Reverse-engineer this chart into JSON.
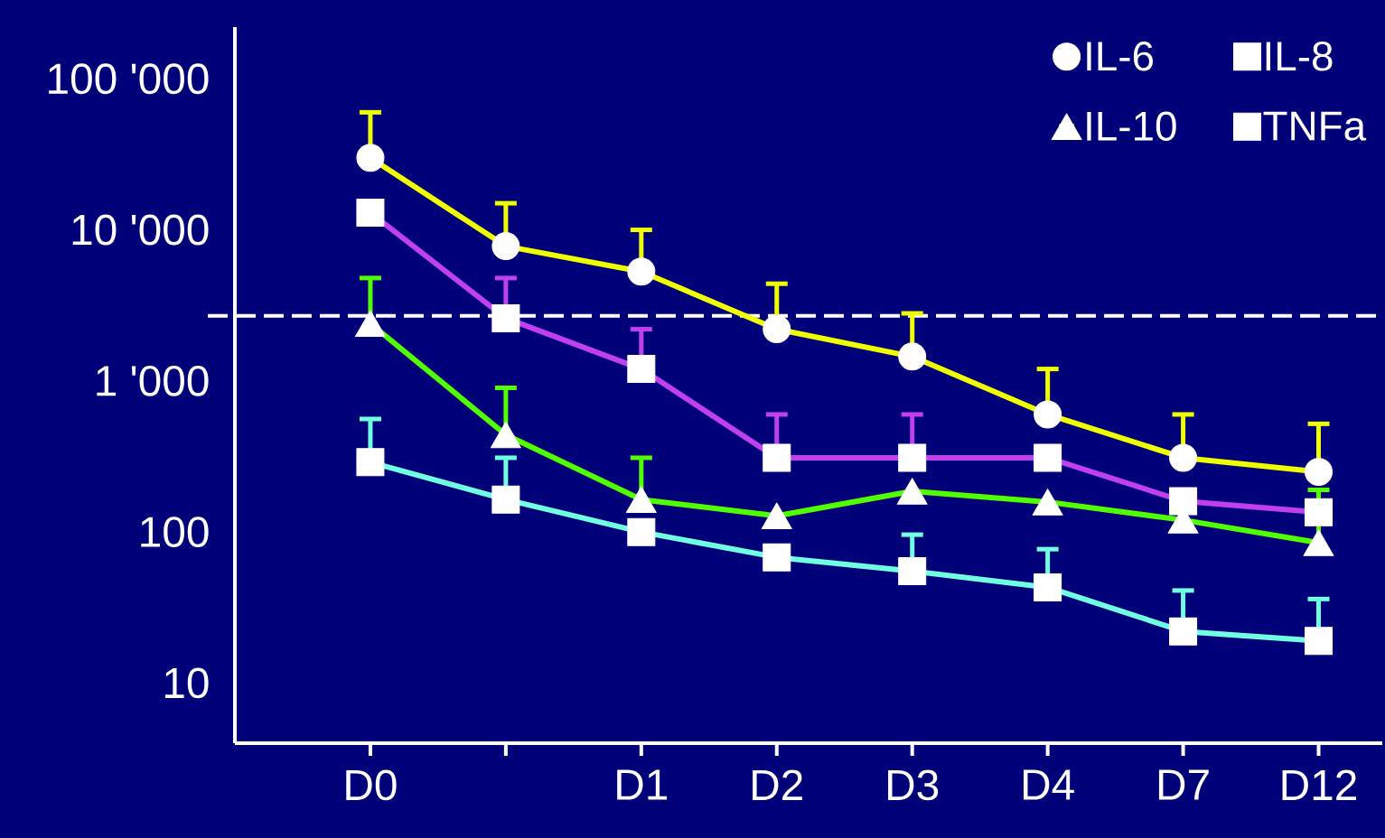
{
  "chart_data": {
    "type": "line",
    "categories": [
      "D0",
      null,
      "D1",
      "D2",
      "D3",
      "D4",
      "D7",
      "D12"
    ],
    "log": "y",
    "ylim": [
      4,
      220000
    ],
    "yticks": [
      10,
      100,
      {
        "value": 1000,
        "label": "1 '000"
      },
      {
        "value": 10000,
        "label": "10 '000"
      },
      {
        "value": 100000,
        "label": "100 '000"
      }
    ],
    "legend": "top right",
    "ref_lines": [
      {
        "axis": "y",
        "value": 2700,
        "line_style": "dashed",
        "color": "#ffffff"
      }
    ],
    "series": [
      {
        "name": "IL-6",
        "color": "#f0ff00",
        "marker": "circle",
        "values": [
          30000,
          7800,
          5300,
          2200,
          1450,
          600,
          310,
          250
        ],
        "errors": [
          [
            30000,
            60000
          ],
          [
            7800,
            15000
          ],
          [
            5300,
            10000
          ],
          [
            2200,
            4400
          ],
          [
            1450,
            2800
          ],
          [
            600,
            1200
          ],
          [
            310,
            600
          ],
          [
            250,
            520
          ]
        ]
      },
      {
        "name": "IL-8",
        "color": "#c040f0",
        "marker": "square",
        "values": [
          13000,
          2600,
          1200,
          310,
          310,
          310,
          160,
          135
        ],
        "errors": [
          null,
          [
            2600,
            4800
          ],
          [
            1200,
            2200
          ],
          [
            310,
            600
          ],
          [
            310,
            600
          ],
          null,
          null,
          null
        ]
      },
      {
        "name": "IL-10",
        "color": "#50ff00",
        "marker": "triangle",
        "values": [
          2400,
          440,
          164,
          128,
          186,
          158,
          120,
          85
        ],
        "errors": [
          [
            2400,
            4800
          ],
          [
            440,
            900
          ],
          [
            164,
            310
          ],
          null,
          null,
          null,
          null,
          [
            85,
            190
          ]
        ]
      },
      {
        "name": "TNFa",
        "color": "#70ffe0",
        "marker": "square",
        "values": [
          290,
          164,
          100,
          68,
          55,
          43,
          22,
          19
        ],
        "errors": [
          [
            290,
            560
          ],
          [
            164,
            310
          ],
          null,
          null,
          [
            55,
            96
          ],
          [
            43,
            77
          ],
          [
            22,
            41
          ],
          [
            19,
            36
          ]
        ]
      }
    ]
  }
}
